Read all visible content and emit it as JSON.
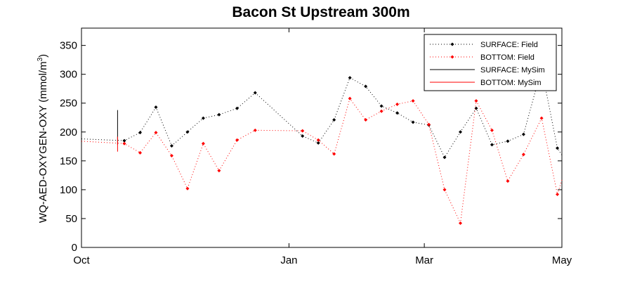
{
  "chart_data": {
    "type": "line",
    "title": "Bacon St Upstream 300m",
    "ylabel": "WQ-AED-OXYGEN-OXY (mmol/m",
    "ylabel_superscript": "3",
    "ylabel_suffix": ")",
    "xlabel": "",
    "ylim": [
      0,
      380
    ],
    "yticks": [
      0,
      50,
      100,
      150,
      200,
      250,
      300,
      350
    ],
    "xlim": [
      "2015-10-01",
      "2016-05-01"
    ],
    "xticks": [
      {
        "label": "Oct",
        "date": "2015-10-01"
      },
      {
        "label": "Jan",
        "date": "2016-01-01"
      },
      {
        "label": "Mar",
        "date": "2016-03-01"
      },
      {
        "label": "May",
        "date": "2016-05-01"
      }
    ],
    "grid": false,
    "legend_position": "top-right",
    "series": [
      {
        "name": "SURFACE: Field",
        "color": "#000000",
        "style": "dotted-marker",
        "points": [
          [
            "2015-10-01",
            188
          ],
          [
            "2015-10-20",
            185
          ],
          [
            "2015-10-27",
            199
          ],
          [
            "2015-11-03",
            243
          ],
          [
            "2015-11-10",
            176
          ],
          [
            "2015-11-17",
            200
          ],
          [
            "2015-11-24",
            224
          ],
          [
            "2015-12-01",
            230
          ],
          [
            "2015-12-09",
            241
          ],
          [
            "2015-12-17",
            268
          ],
          [
            "2016-01-07",
            193
          ],
          [
            "2016-01-14",
            181
          ],
          [
            "2016-01-21",
            221
          ],
          [
            "2016-01-28",
            294
          ],
          [
            "2016-02-04",
            279
          ],
          [
            "2016-02-11",
            245
          ],
          [
            "2016-02-18",
            233
          ],
          [
            "2016-02-25",
            217
          ],
          [
            "2016-03-03",
            212
          ],
          [
            "2016-03-10",
            156
          ],
          [
            "2016-03-17",
            200
          ],
          [
            "2016-03-24",
            241
          ],
          [
            "2016-03-31",
            178
          ],
          [
            "2016-04-07",
            184
          ],
          [
            "2016-04-14",
            196
          ],
          [
            "2016-04-22",
            310
          ],
          [
            "2016-04-29",
            172
          ],
          [
            "2016-05-01",
            160
          ]
        ]
      },
      {
        "name": "BOTTOM: Field",
        "color": "#ff0000",
        "style": "dotted-marker",
        "points": [
          [
            "2015-10-01",
            184
          ],
          [
            "2015-10-20",
            180
          ],
          [
            "2015-10-27",
            164
          ],
          [
            "2015-11-03",
            199
          ],
          [
            "2015-11-10",
            159
          ],
          [
            "2015-11-17",
            102
          ],
          [
            "2015-11-24",
            180
          ],
          [
            "2015-12-01",
            133
          ],
          [
            "2015-12-09",
            186
          ],
          [
            "2015-12-17",
            203
          ],
          [
            "2016-01-07",
            202
          ],
          [
            "2016-01-14",
            186
          ],
          [
            "2016-01-21",
            162
          ],
          [
            "2016-01-28",
            258
          ],
          [
            "2016-02-04",
            221
          ],
          [
            "2016-02-11",
            236
          ],
          [
            "2016-02-18",
            248
          ],
          [
            "2016-02-25",
            254
          ],
          [
            "2016-03-03",
            213
          ],
          [
            "2016-03-10",
            100
          ],
          [
            "2016-03-17",
            42
          ],
          [
            "2016-03-24",
            254
          ],
          [
            "2016-03-31",
            203
          ],
          [
            "2016-04-07",
            115
          ],
          [
            "2016-04-14",
            161
          ],
          [
            "2016-04-22",
            224
          ],
          [
            "2016-04-29",
            92
          ],
          [
            "2016-05-01",
            117
          ]
        ]
      },
      {
        "name": "SURFACE: MySim",
        "color": "#000000",
        "style": "solid",
        "points": [
          [
            "2015-10-17",
            178
          ],
          [
            "2015-10-17",
            190
          ],
          [
            "2015-10-17",
            205
          ],
          [
            "2015-10-17",
            220
          ],
          [
            "2015-10-17",
            238
          ]
        ]
      },
      {
        "name": "BOTTOM: MySim",
        "color": "#ff0000",
        "style": "solid",
        "points": [
          [
            "2015-10-17",
            192
          ],
          [
            "2015-10-17",
            180
          ],
          [
            "2015-10-17",
            172
          ],
          [
            "2015-10-17",
            166
          ]
        ]
      }
    ]
  }
}
